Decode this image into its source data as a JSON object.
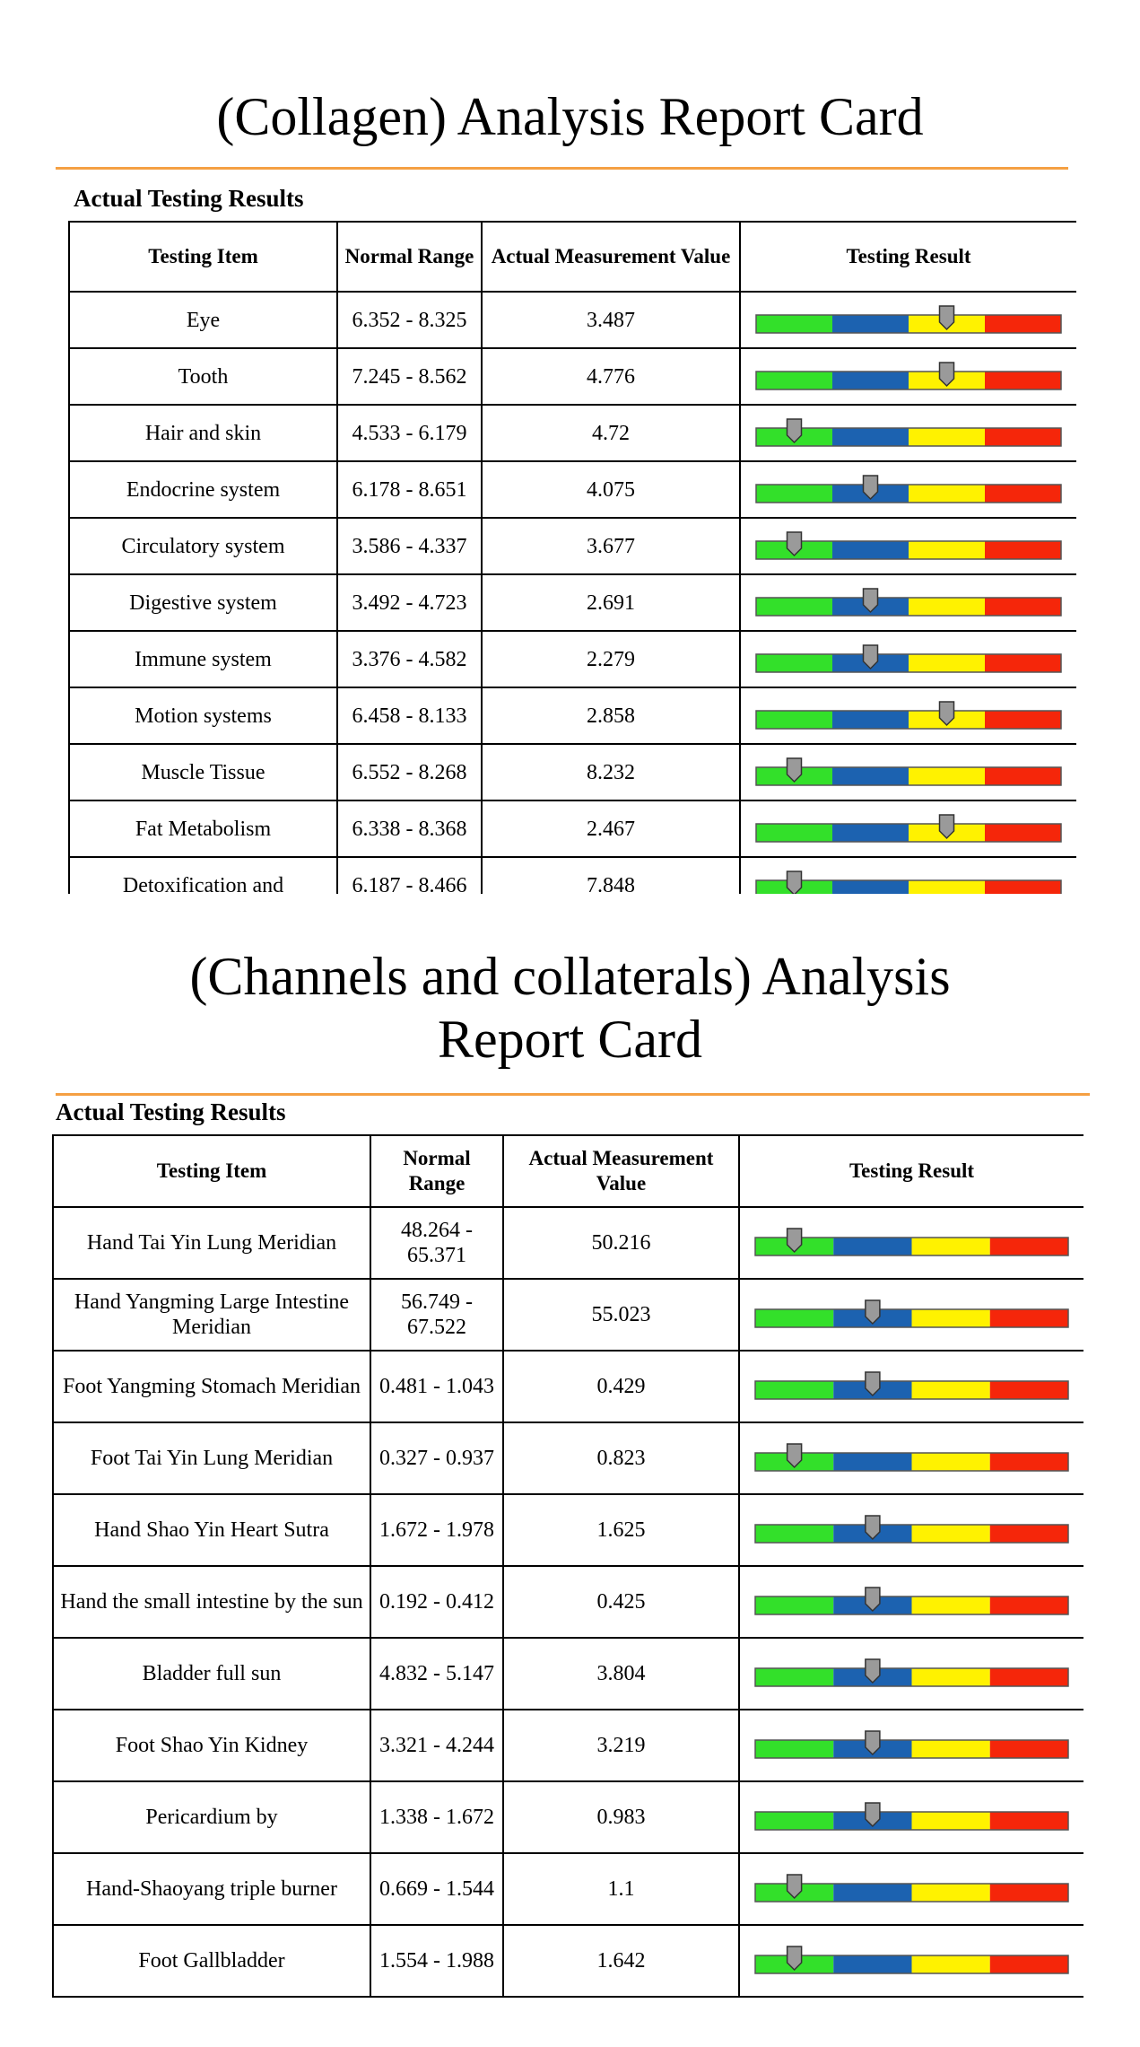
{
  "sections": [
    {
      "title": "(Collagen) Analysis Report Card",
      "subtitle": "Actual Testing Results",
      "headers": [
        "Testing Item",
        "Normal Range",
        "Actual Measurement Value",
        "Testing Result"
      ],
      "rows": [
        {
          "item": "Eye",
          "range": "6.352 - 8.325",
          "value": 3.487,
          "level": 2
        },
        {
          "item": "Tooth",
          "range": "7.245 - 8.562",
          "value": 4.776,
          "level": 2
        },
        {
          "item": "Hair and skin",
          "range": "4.533 - 6.179",
          "value": 4.72,
          "level": 0
        },
        {
          "item": "Endocrine system",
          "range": "6.178 - 8.651",
          "value": 4.075,
          "level": 1
        },
        {
          "item": "Circulatory system",
          "range": "3.586 - 4.337",
          "value": 3.677,
          "level": 0
        },
        {
          "item": "Digestive system",
          "range": "3.492 - 4.723",
          "value": 2.691,
          "level": 1
        },
        {
          "item": "Immune system",
          "range": "3.376 - 4.582",
          "value": 2.279,
          "level": 1
        },
        {
          "item": "Motion systems",
          "range": "6.458 - 8.133",
          "value": 2.858,
          "level": 2
        },
        {
          "item": "Muscle Tissue",
          "range": "6.552 - 8.268",
          "value": 8.232,
          "level": 0
        },
        {
          "item": "Fat Metabolism",
          "range": "6.338 - 8.368",
          "value": 2.467,
          "level": 2
        },
        {
          "item": "Detoxification and",
          "range": "6.187 - 8.466",
          "value": 7.848,
          "level": 0
        }
      ]
    },
    {
      "title": "(Channels and collaterals) Analysis Report Card",
      "subtitle": "Actual Testing Results",
      "headers": [
        "Testing Item",
        "Normal Range",
        "Actual Measurement Value",
        "Testing Result"
      ],
      "rows": [
        {
          "item": "Hand Tai Yin Lung Meridian",
          "range": "48.264 - 65.371",
          "value": 50.216,
          "level": 0
        },
        {
          "item": "Hand Yangming Large Intestine Meridian",
          "range": "56.749 - 67.522",
          "value": 55.023,
          "level": 1
        },
        {
          "item": "Foot Yangming Stomach Meridian",
          "range": "0.481 - 1.043",
          "value": 0.429,
          "level": 1
        },
        {
          "item": "Foot Tai Yin Lung Meridian",
          "range": "0.327 - 0.937",
          "value": 0.823,
          "level": 0
        },
        {
          "item": "Hand Shao Yin Heart Sutra",
          "range": "1.672 - 1.978",
          "value": 1.625,
          "level": 1
        },
        {
          "item": "Hand the small intestine by the sun",
          "range": "0.192 - 0.412",
          "value": 0.425,
          "level": 1
        },
        {
          "item": "Bladder full sun",
          "range": "4.832 - 5.147",
          "value": 3.804,
          "level": 1
        },
        {
          "item": "Foot Shao Yin Kidney",
          "range": "3.321 - 4.244",
          "value": 3.219,
          "level": 1
        },
        {
          "item": "Pericardium by",
          "range": "1.338 - 1.672",
          "value": 0.983,
          "level": 1
        },
        {
          "item": "Hand-Shaoyang triple burner",
          "range": "0.669 - 1.544",
          "value": 1.1,
          "level": 0
        },
        {
          "item": "Foot Gallbladder",
          "range": "1.554 - 1.988",
          "value": 1.642,
          "level": 0
        }
      ]
    }
  ]
}
